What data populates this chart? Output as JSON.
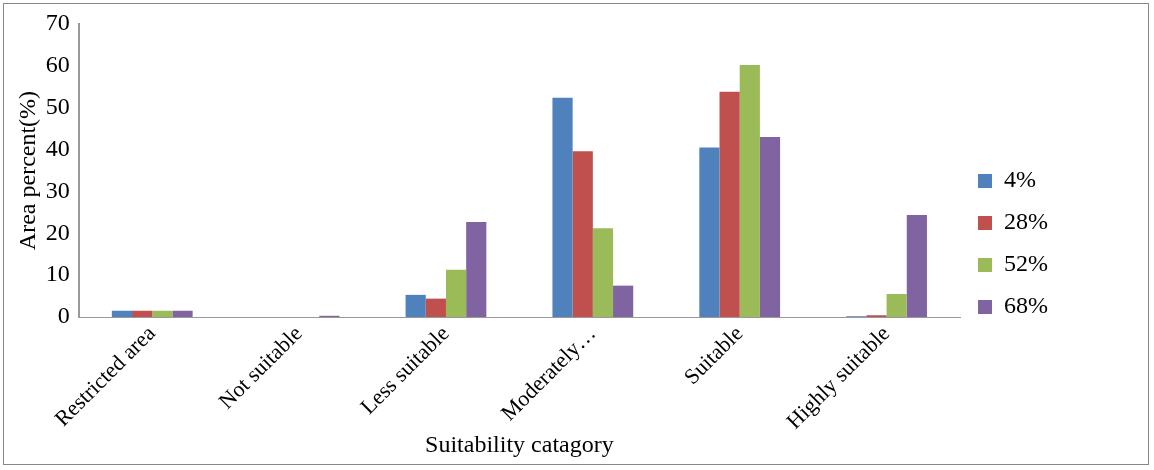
{
  "chart_data": {
    "type": "bar",
    "xlabel": "Suitability catagory",
    "ylabel": "Area percent(%)",
    "categories": [
      "Restricted area",
      "Not suitable",
      "Less suitable",
      "Moderately…",
      "Suitable",
      "Highly suitable"
    ],
    "series": [
      {
        "name": "4%",
        "color": "#4f81bd",
        "values": [
          1.5,
          0,
          5.3,
          52.4,
          40.5,
          0.2
        ]
      },
      {
        "name": "28%",
        "color": "#c0504d",
        "values": [
          1.5,
          0,
          4.4,
          39.6,
          53.8,
          0.4
        ]
      },
      {
        "name": "52%",
        "color": "#9bbb59",
        "values": [
          1.5,
          0,
          11.3,
          21.2,
          60.2,
          5.5
        ]
      },
      {
        "name": "68%",
        "color": "#8064a2",
        "values": [
          1.5,
          0.3,
          22.7,
          7.5,
          43,
          24.4
        ]
      }
    ],
    "ylim": [
      0,
      70
    ],
    "yticks": [
      0,
      10,
      20,
      30,
      40,
      50,
      60,
      70
    ],
    "grid": false,
    "legend": "right"
  }
}
